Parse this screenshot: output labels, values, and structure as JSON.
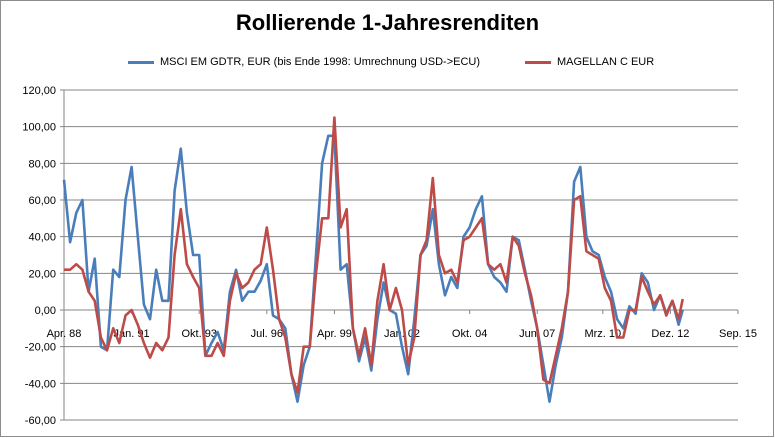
{
  "chart_data": {
    "type": "line",
    "title": "Rollierende 1-Jahresrenditen",
    "xlabel": "",
    "ylabel": "",
    "ylim": [
      -60,
      120
    ],
    "yticks": [
      -60,
      -40,
      -20,
      0,
      20,
      40,
      60,
      80,
      100,
      120
    ],
    "ytick_labels": [
      "-60,00",
      "-40,00",
      "-20,00",
      "0,00",
      "20,00",
      "40,00",
      "60,00",
      "80,00",
      "100,00",
      "120,00"
    ],
    "xlim": [
      "1988-04",
      "2015-09"
    ],
    "xticks": [
      "1988-04",
      "1991-01",
      "1993-10",
      "1996-07",
      "1999-04",
      "2002-01",
      "2004-10",
      "2007-07",
      "2010-03",
      "2012-12",
      "2015-09"
    ],
    "xtick_labels": [
      "Apr. 88",
      "Jan. 91",
      "Okt. 93",
      "Jul. 96",
      "Apr. 99",
      "Jan. 02",
      "Okt. 04",
      "Jun. 07",
      "Mrz. 10",
      "Dez. 12",
      "Sep. 15"
    ],
    "grid": "horizontal",
    "legend_position": "top",
    "x": [
      "1988-04",
      "1988-07",
      "1988-10",
      "1989-01",
      "1989-04",
      "1989-07",
      "1989-10",
      "1990-01",
      "1990-04",
      "1990-07",
      "1990-10",
      "1991-01",
      "1991-04",
      "1991-07",
      "1991-10",
      "1992-01",
      "1992-04",
      "1992-07",
      "1992-10",
      "1993-01",
      "1993-04",
      "1993-07",
      "1993-10",
      "1994-01",
      "1994-04",
      "1994-07",
      "1994-10",
      "1995-01",
      "1995-04",
      "1995-07",
      "1995-10",
      "1996-01",
      "1996-04",
      "1996-07",
      "1996-10",
      "1997-01",
      "1997-04",
      "1997-07",
      "1997-10",
      "1998-01",
      "1998-04",
      "1998-07",
      "1998-10",
      "1999-01",
      "1999-04",
      "1999-07",
      "1999-10",
      "2000-01",
      "2000-04",
      "2000-07",
      "2000-10",
      "2001-01",
      "2001-04",
      "2001-07",
      "2001-10",
      "2002-01",
      "2002-04",
      "2002-07",
      "2002-10",
      "2003-01",
      "2003-04",
      "2003-07",
      "2003-10",
      "2004-01",
      "2004-04",
      "2004-07",
      "2004-10",
      "2005-01",
      "2005-04",
      "2005-07",
      "2005-10",
      "2006-01",
      "2006-04",
      "2006-07",
      "2006-10",
      "2007-01",
      "2007-04",
      "2007-07",
      "2007-10",
      "2008-01",
      "2008-04",
      "2008-07",
      "2008-10",
      "2009-01",
      "2009-04",
      "2009-07",
      "2009-10",
      "2010-01",
      "2010-04",
      "2010-07",
      "2010-10",
      "2011-01",
      "2011-04",
      "2011-07",
      "2011-10",
      "2012-01",
      "2012-04",
      "2012-07",
      "2012-10",
      "2013-01",
      "2013-04",
      "2013-06"
    ],
    "series": [
      {
        "name": "MSCI EM GDTR,  EUR (bis Ende 1998: Umrechnung USD->ECU)",
        "color": "#4a7ebb",
        "values": [
          71,
          37,
          53,
          60,
          10,
          28,
          -20,
          -22,
          22,
          18,
          60,
          78,
          40,
          3,
          -5,
          22,
          5,
          5,
          65,
          88,
          53,
          30,
          30,
          -25,
          -18,
          -12,
          -22,
          10,
          22,
          5,
          10,
          10,
          16,
          25,
          -3,
          -5,
          -10,
          -35,
          -50,
          -30,
          -20,
          30,
          80,
          95,
          95,
          22,
          25,
          -10,
          -28,
          -15,
          -33,
          -5,
          15,
          0,
          -2,
          -20,
          -35,
          -5,
          30,
          35,
          55,
          25,
          8,
          18,
          12,
          40,
          45,
          55,
          62,
          25,
          18,
          15,
          10,
          40,
          38,
          22,
          5,
          -10,
          -30,
          -50,
          -30,
          -15,
          10,
          70,
          78,
          40,
          32,
          30,
          18,
          10,
          -5,
          -10,
          2,
          -2,
          20,
          15,
          0,
          8,
          -2,
          5,
          -8,
          0
        ]
      },
      {
        "name": "MAGELLAN C EUR",
        "color": "#be4b48",
        "values": [
          22,
          22,
          25,
          22,
          10,
          5,
          -15,
          -22,
          -10,
          -18,
          -3,
          0,
          -8,
          -18,
          -26,
          -18,
          -22,
          -15,
          30,
          55,
          25,
          18,
          12,
          -25,
          -25,
          -18,
          -25,
          5,
          20,
          12,
          15,
          22,
          25,
          45,
          22,
          -5,
          -15,
          -35,
          -45,
          -20,
          -20,
          20,
          50,
          50,
          105,
          45,
          55,
          -10,
          -25,
          -10,
          -30,
          5,
          25,
          0,
          12,
          0,
          -30,
          -15,
          30,
          38,
          72,
          30,
          20,
          22,
          15,
          38,
          40,
          45,
          50,
          25,
          22,
          25,
          15,
          40,
          35,
          20,
          8,
          -10,
          -38,
          -40,
          -25,
          -10,
          10,
          60,
          62,
          32,
          30,
          28,
          12,
          5,
          -15,
          -15,
          0,
          0,
          18,
          10,
          3,
          8,
          -3,
          5,
          -5,
          6
        ]
      }
    ]
  }
}
